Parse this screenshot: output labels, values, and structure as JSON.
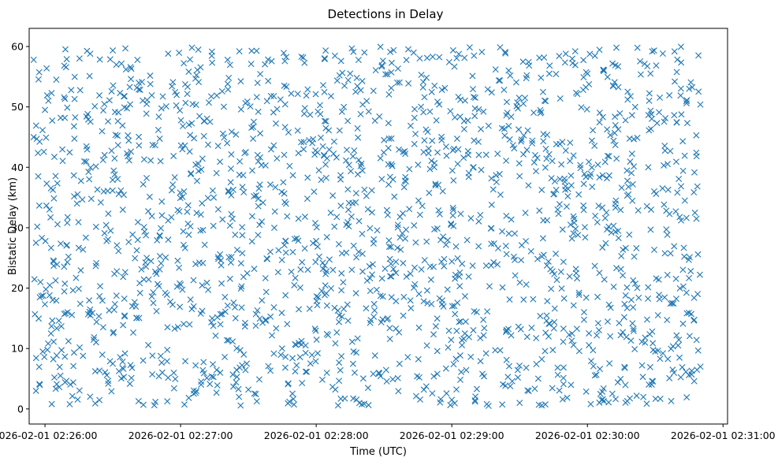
{
  "chart_data": {
    "type": "scatter",
    "title": "Detections in Delay",
    "xlabel": "Time (UTC)",
    "ylabel": "Bistatic Delay (km)",
    "marker": "x",
    "marker_color": "#1f77b4",
    "grid": false,
    "legend": "none",
    "xlim": [
      "2026-02-01 02:25:53",
      "2026-02-01 02:31:02"
    ],
    "ylim": [
      -2.5,
      63
    ],
    "x_ticks": [
      "2026-02-01 02:26:00",
      "2026-02-01 02:27:00",
      "2026-02-01 02:28:00",
      "2026-02-01 02:29:00",
      "2026-02-01 02:30:00",
      "2026-02-01 02:31:00"
    ],
    "y_ticks": [
      0,
      10,
      20,
      30,
      40,
      50,
      60
    ],
    "series": [
      {
        "x_start": "2026-02-01 02:25:55",
        "x_end": "2026-02-01 02:30:50",
        "y_range": [
          0.5,
          60
        ],
        "points": [
          [
            "2026-02-01 02:25:55",
            57.8
          ],
          [
            "2026-02-01 02:25:55",
            45.0
          ],
          [
            "2026-02-01 02:25:56",
            27.5
          ],
          [
            "2026-02-01 02:25:56",
            3.0
          ],
          [
            "2026-02-01 02:25:57",
            38.5
          ],
          [
            "2026-02-01 02:25:58",
            21.0
          ],
          [
            "2026-02-01 02:25:59",
            9.5
          ],
          [
            "2026-02-01 02:26:00",
            49.5
          ],
          [
            "2026-02-01 02:26:02",
            33.0
          ],
          [
            "2026-02-01 02:26:03",
            0.8
          ],
          [
            "2026-02-01 02:26:05",
            54.5
          ],
          [
            "2026-02-01 02:26:10",
            16.0
          ],
          [
            "2026-02-01 02:26:20",
            58.8
          ],
          [
            "2026-02-01 02:26:30",
            7.5
          ],
          [
            "2026-02-01 02:26:45",
            25.0
          ],
          [
            "2026-02-01 02:27:05",
            59.8
          ],
          [
            "2026-02-01 02:27:30",
            3.2
          ],
          [
            "2026-02-01 02:28:00",
            27.8
          ],
          [
            "2026-02-01 02:28:30",
            44.5
          ],
          [
            "2026-02-01 02:29:00",
            1.5
          ],
          [
            "2026-02-01 02:29:30",
            1.0
          ],
          [
            "2026-02-01 02:30:00",
            55.5
          ],
          [
            "2026-02-01 02:30:30",
            9.5
          ],
          [
            "2026-02-01 02:30:45",
            53.0
          ],
          [
            "2026-02-01 02:30:50",
            7.0
          ]
        ]
      }
    ]
  }
}
